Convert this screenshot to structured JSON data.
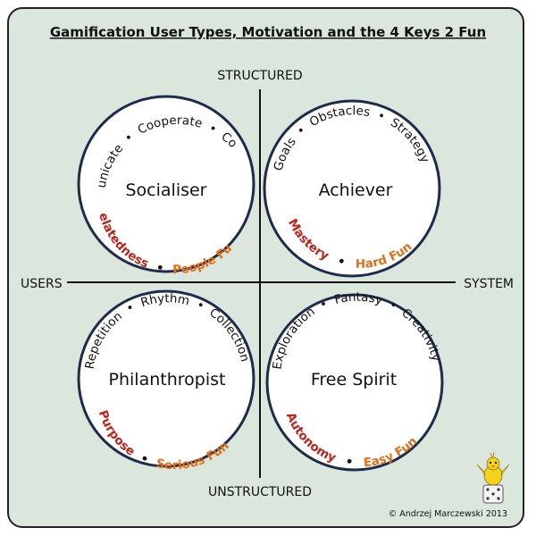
{
  "title": "Gamification User Types, Motivation and the 4 Keys 2 Fun",
  "axes": {
    "top": "STRUCTURED",
    "bottom": "UNSTRUCTURED",
    "left": "USERS",
    "right": "SYSTEM"
  },
  "quadrants": [
    {
      "id": "socialiser",
      "name": "Socialiser",
      "top_words": [
        "Communicate",
        "Cooperate",
        "Compete"
      ],
      "motivation": "Relatedness",
      "fun": "People Fun"
    },
    {
      "id": "achiever",
      "name": "Achiever",
      "top_words": [
        "Goals",
        "Obstacles",
        "Strategy"
      ],
      "motivation": "Mastery",
      "fun": "Hard Fun"
    },
    {
      "id": "philanthropist",
      "name": "Philanthropist",
      "top_words": [
        "Repetition",
        "Rhythm",
        "Collection"
      ],
      "motivation": "Purpose",
      "fun": "Serious Fun"
    },
    {
      "id": "free-spirit",
      "name": "Free Spirit",
      "top_words": [
        "Exploration",
        "Fantasy",
        "Creativity"
      ],
      "motivation": "Autonomy",
      "fun": "Easy Fun"
    }
  ],
  "copyright": "© Andrzej Marczewski 2013",
  "colors": {
    "background": "#dbe7dc",
    "frame": "#222222",
    "circle_stroke": "#1f2b4a",
    "circle_fill": "#ffffff",
    "word": "#111111",
    "motivation": "#c0221a",
    "fun": "#e0701a"
  }
}
